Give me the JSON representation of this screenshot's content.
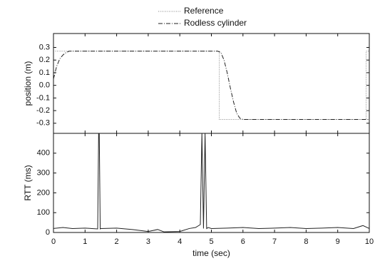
{
  "chart_data": [
    {
      "type": "line",
      "ylabel": "position (m)",
      "ylim": [
        -0.38,
        0.41
      ],
      "yticks": [
        0.3,
        0.2,
        0.1,
        {
          "value": 0,
          "label": "0.0"
        },
        -0.1,
        -0.2,
        -0.3
      ],
      "legend": "top",
      "series": [
        {
          "name": "Reference",
          "color": "#888888",
          "dash": "1,1.5",
          "x": [
            0,
            5.25,
            5.25,
            9.9,
            9.9,
            10
          ],
          "values": [
            0.27,
            0.27,
            -0.27,
            -0.27,
            0.27,
            0.27
          ]
        },
        {
          "name": "Rodless cylinder",
          "color": "#222222",
          "dash": "6,2,1,2",
          "x": [
            0,
            0.1,
            0.2,
            0.3,
            0.4,
            0.5,
            0.7,
            5.2,
            5.3,
            5.4,
            5.5,
            5.6,
            5.7,
            5.8,
            5.9,
            6.0,
            10
          ],
          "values": [
            0.05,
            0.15,
            0.21,
            0.24,
            0.26,
            0.27,
            0.27,
            0.27,
            0.26,
            0.2,
            0.1,
            -0.02,
            -0.13,
            -0.22,
            -0.26,
            -0.27,
            -0.27
          ]
        }
      ]
    },
    {
      "type": "line",
      "xlabel": "time (sec)",
      "ylabel": "RTT (ms)",
      "xlim": [
        0,
        10
      ],
      "xticks": [
        0,
        1,
        2,
        3,
        4,
        5,
        6,
        7,
        8,
        9,
        10
      ],
      "ylim": [
        0,
        500
      ],
      "yticks": [
        0,
        100,
        200,
        300,
        400
      ],
      "series": [
        {
          "color": "#222222",
          "x": [
            0,
            0.3,
            0.6,
            1,
            1.4,
            1.43,
            1.45,
            1.48,
            1.5,
            2,
            2.5,
            3,
            3.3,
            3.5,
            4,
            4.3,
            4.5,
            4.65,
            4.7,
            4.75,
            4.8,
            4.85,
            4.9,
            5,
            5.5,
            6,
            6.5,
            7,
            7.5,
            8,
            8.5,
            9,
            9.5,
            9.8,
            10
          ],
          "values": [
            20,
            25,
            20,
            22,
            18,
            500,
            500,
            18,
            20,
            22,
            15,
            5,
            15,
            3,
            5,
            20,
            25,
            40,
            500,
            20,
            500,
            20,
            25,
            20,
            22,
            25,
            20,
            22,
            25,
            20,
            22,
            25,
            20,
            35,
            20
          ]
        }
      ]
    }
  ]
}
